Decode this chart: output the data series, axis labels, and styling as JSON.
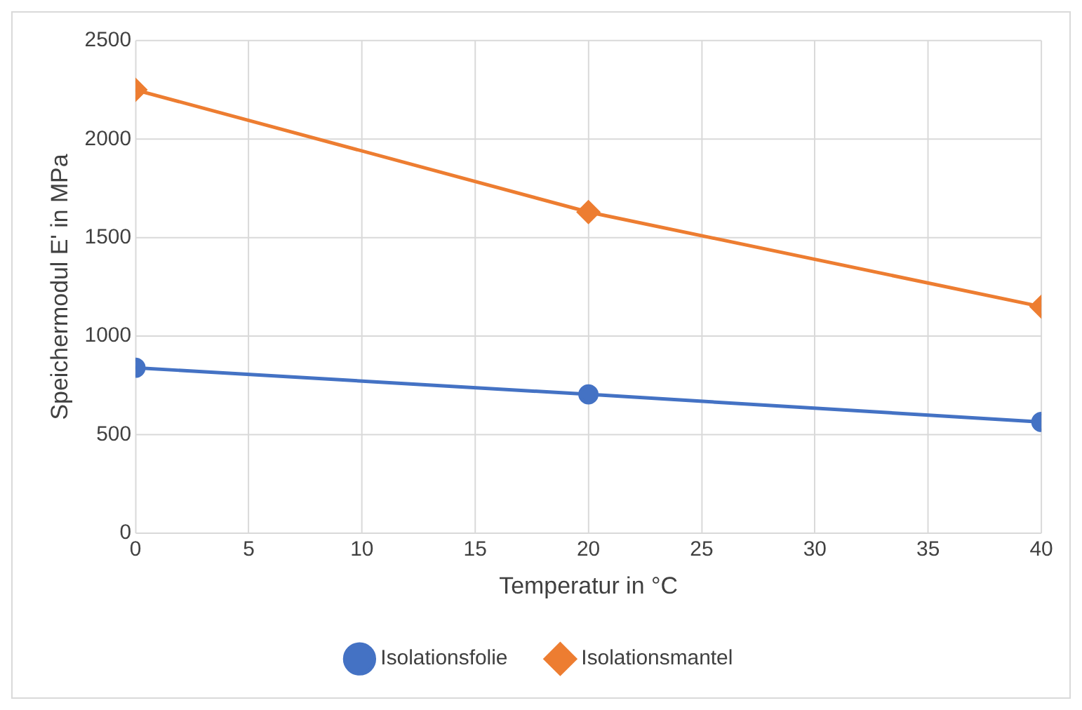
{
  "chart_data": {
    "type": "line",
    "xlabel": "Temperatur in °C",
    "ylabel": "Speichermodul E' in MPa",
    "x": [
      0,
      20,
      40
    ],
    "series": [
      {
        "name": "Isolationsfolie",
        "color": "#4472c4",
        "values": [
          840,
          705,
          565
        ],
        "marker": "circle"
      },
      {
        "name": "Isolationsmantel",
        "color": "#ed7d31",
        "values": [
          2250,
          1630,
          1150
        ],
        "marker": "diamond"
      }
    ],
    "xlim": [
      0,
      40
    ],
    "xticks": [
      0,
      5,
      10,
      15,
      20,
      25,
      30,
      35,
      40
    ],
    "ylim": [
      0,
      2500
    ],
    "yticks": [
      0,
      500,
      1000,
      1500,
      2000,
      2500
    ],
    "grid": true,
    "legend": "bottom",
    "line_style": "solid"
  }
}
